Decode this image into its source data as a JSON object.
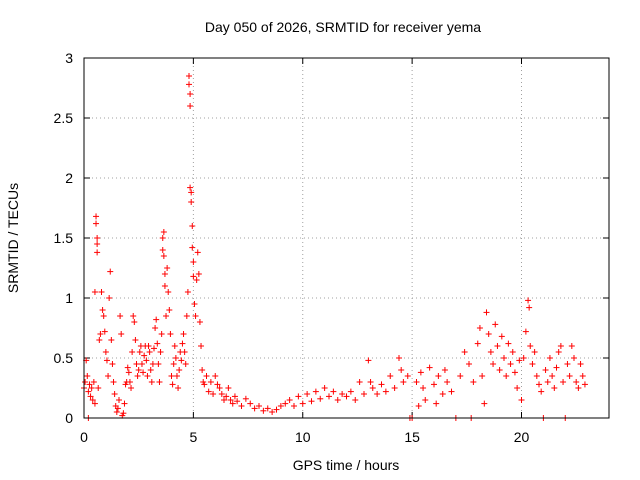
{
  "chart_data": {
    "type": "scatter",
    "title": "Day 050 of 2026, SRMTID for receiver yema",
    "xlabel": "GPS time / hours",
    "ylabel": "SRMTID / TECUs",
    "xlim": [
      0,
      24
    ],
    "ylim": [
      0,
      3
    ],
    "x_ticks": [
      0,
      5,
      10,
      15,
      20
    ],
    "x_tick_labels": [
      "0",
      "5",
      "10",
      "15",
      "20"
    ],
    "y_ticks": [
      0,
      0.5,
      1,
      1.5,
      2,
      2.5,
      3
    ],
    "y_tick_labels": [
      "0",
      "0.5",
      "1",
      "1.5",
      "2",
      "2.5",
      "3"
    ],
    "grid": true,
    "marker": "plus",
    "series": [
      {
        "name": "SRMTID",
        "color": "#ff0000",
        "points": [
          [
            0.0,
            0.25
          ],
          [
            0.05,
            0.3
          ],
          [
            0.1,
            0.48
          ],
          [
            0.15,
            0.35
          ],
          [
            0.2,
            0.22
          ],
          [
            0.25,
            0.28
          ],
          [
            0.3,
            0.18
          ],
          [
            0.35,
            0.25
          ],
          [
            0.4,
            0.15
          ],
          [
            0.45,
            0.3
          ],
          [
            0.5,
            0.12
          ],
          [
            0.5,
            1.05
          ],
          [
            0.55,
            1.68
          ],
          [
            0.55,
            1.62
          ],
          [
            0.6,
            1.5
          ],
          [
            0.6,
            1.45
          ],
          [
            0.6,
            1.38
          ],
          [
            0.65,
            0.25
          ],
          [
            0.7,
            0.65
          ],
          [
            0.75,
            0.7
          ],
          [
            0.8,
            1.05
          ],
          [
            0.85,
            0.9
          ],
          [
            0.9,
            0.85
          ],
          [
            0.95,
            0.72
          ],
          [
            1.0,
            0.55
          ],
          [
            1.05,
            0.48
          ],
          [
            1.1,
            0.35
          ],
          [
            1.15,
            1.0
          ],
          [
            1.2,
            1.22
          ],
          [
            1.25,
            0.65
          ],
          [
            1.3,
            0.45
          ],
          [
            1.35,
            0.3
          ],
          [
            1.4,
            0.2
          ],
          [
            1.45,
            0.1
          ],
          [
            1.5,
            0.05
          ],
          [
            1.55,
            0.08
          ],
          [
            1.6,
            0.15
          ],
          [
            1.65,
            0.85
          ],
          [
            1.7,
            0.7
          ],
          [
            1.75,
            0.02
          ],
          [
            1.8,
            0.04
          ],
          [
            1.85,
            0.12
          ],
          [
            1.9,
            0.28
          ],
          [
            1.95,
            0.3
          ],
          [
            2.0,
            0.42
          ],
          [
            2.05,
            0.38
          ],
          [
            2.1,
            0.3
          ],
          [
            2.15,
            0.25
          ],
          [
            2.2,
            0.55
          ],
          [
            2.25,
            0.85
          ],
          [
            2.3,
            0.8
          ],
          [
            2.35,
            0.65
          ],
          [
            2.4,
            0.45
          ],
          [
            2.45,
            0.35
          ],
          [
            2.5,
            0.4
          ],
          [
            2.55,
            0.55
          ],
          [
            2.6,
            0.6
          ],
          [
            2.65,
            0.45
          ],
          [
            2.7,
            0.38
          ],
          [
            2.75,
            0.52
          ],
          [
            2.8,
            0.6
          ],
          [
            2.85,
            0.48
          ],
          [
            2.9,
            0.35
          ],
          [
            2.95,
            0.6
          ],
          [
            3.0,
            0.55
          ],
          [
            3.05,
            0.4
          ],
          [
            3.1,
            0.3
          ],
          [
            3.15,
            0.45
          ],
          [
            3.2,
            0.58
          ],
          [
            3.25,
            0.75
          ],
          [
            3.3,
            0.82
          ],
          [
            3.35,
            0.62
          ],
          [
            3.4,
            0.45
          ],
          [
            3.45,
            0.3
          ],
          [
            3.5,
            0.55
          ],
          [
            3.55,
            0.7
          ],
          [
            3.6,
            1.4
          ],
          [
            3.6,
            1.5
          ],
          [
            3.65,
            1.55
          ],
          [
            3.65,
            1.35
          ],
          [
            3.7,
            1.1
          ],
          [
            3.7,
            1.2
          ],
          [
            3.75,
            0.85
          ],
          [
            3.8,
            1.25
          ],
          [
            3.85,
            1.05
          ],
          [
            3.9,
            0.9
          ],
          [
            3.95,
            0.7
          ],
          [
            4.0,
            0.35
          ],
          [
            4.05,
            0.28
          ],
          [
            4.1,
            0.45
          ],
          [
            4.15,
            0.6
          ],
          [
            4.2,
            0.5
          ],
          [
            4.25,
            0.35
          ],
          [
            4.3,
            0.25
          ],
          [
            4.35,
            0.4
          ],
          [
            4.4,
            0.55
          ],
          [
            4.45,
            0.48
          ],
          [
            4.5,
            0.62
          ],
          [
            4.55,
            0.7
          ],
          [
            4.6,
            0.55
          ],
          [
            4.65,
            0.45
          ],
          [
            4.7,
            0.85
          ],
          [
            4.75,
            1.05
          ],
          [
            4.8,
            2.85
          ],
          [
            4.8,
            2.78
          ],
          [
            4.85,
            2.7
          ],
          [
            4.85,
            2.6
          ],
          [
            4.85,
            1.92
          ],
          [
            4.9,
            1.88
          ],
          [
            4.9,
            1.8
          ],
          [
            4.95,
            1.6
          ],
          [
            4.95,
            1.42
          ],
          [
            5.0,
            1.3
          ],
          [
            5.0,
            1.18
          ],
          [
            5.05,
            0.95
          ],
          [
            5.1,
            0.85
          ],
          [
            5.15,
            1.15
          ],
          [
            5.2,
            1.38
          ],
          [
            5.25,
            1.2
          ],
          [
            5.3,
            0.8
          ],
          [
            5.35,
            0.6
          ],
          [
            5.4,
            0.4
          ],
          [
            5.45,
            0.3
          ],
          [
            5.5,
            0.28
          ],
          [
            5.6,
            0.35
          ],
          [
            5.7,
            0.22
          ],
          [
            5.8,
            0.3
          ],
          [
            5.9,
            0.2
          ],
          [
            6.0,
            0.35
          ],
          [
            6.1,
            0.28
          ],
          [
            6.2,
            0.25
          ],
          [
            6.3,
            0.2
          ],
          [
            6.4,
            0.15
          ],
          [
            6.5,
            0.18
          ],
          [
            6.6,
            0.25
          ],
          [
            6.7,
            0.15
          ],
          [
            6.8,
            0.12
          ],
          [
            6.9,
            0.18
          ],
          [
            7.0,
            0.14
          ],
          [
            7.2,
            0.1
          ],
          [
            7.4,
            0.16
          ],
          [
            7.6,
            0.12
          ],
          [
            7.8,
            0.08
          ],
          [
            8.0,
            0.1
          ],
          [
            8.2,
            0.06
          ],
          [
            8.4,
            0.08
          ],
          [
            8.6,
            0.05
          ],
          [
            8.8,
            0.07
          ],
          [
            9.0,
            0.1
          ],
          [
            9.2,
            0.12
          ],
          [
            9.4,
            0.15
          ],
          [
            9.6,
            0.1
          ],
          [
            9.8,
            0.18
          ],
          [
            10.0,
            0.12
          ],
          [
            10.2,
            0.2
          ],
          [
            10.4,
            0.14
          ],
          [
            10.6,
            0.22
          ],
          [
            10.8,
            0.16
          ],
          [
            11.0,
            0.25
          ],
          [
            11.2,
            0.18
          ],
          [
            11.4,
            0.22
          ],
          [
            11.6,
            0.15
          ],
          [
            11.8,
            0.2
          ],
          [
            12.0,
            0.18
          ],
          [
            12.2,
            0.22
          ],
          [
            12.4,
            0.15
          ],
          [
            12.6,
            0.3
          ],
          [
            12.8,
            0.2
          ],
          [
            13.0,
            0.48
          ],
          [
            13.1,
            0.3
          ],
          [
            13.2,
            0.25
          ],
          [
            13.4,
            0.2
          ],
          [
            13.6,
            0.28
          ],
          [
            13.8,
            0.22
          ],
          [
            14.0,
            0.35
          ],
          [
            14.2,
            0.25
          ],
          [
            14.4,
            0.5
          ],
          [
            14.5,
            0.4
          ],
          [
            14.6,
            0.3
          ],
          [
            14.8,
            0.35
          ],
          [
            14.9,
            0.0
          ],
          [
            15.0,
            0.0
          ],
          [
            15.2,
            0.3
          ],
          [
            15.3,
            0.1
          ],
          [
            15.4,
            0.38
          ],
          [
            15.5,
            0.25
          ],
          [
            15.6,
            0.15
          ],
          [
            15.8,
            0.42
          ],
          [
            16.0,
            0.28
          ],
          [
            16.1,
            0.12
          ],
          [
            16.2,
            0.35
          ],
          [
            16.4,
            0.2
          ],
          [
            16.5,
            0.4
          ],
          [
            16.6,
            0.3
          ],
          [
            16.8,
            0.22
          ],
          [
            17.0,
            0.0
          ],
          [
            17.2,
            0.35
          ],
          [
            17.4,
            0.55
          ],
          [
            17.6,
            0.45
          ],
          [
            17.7,
            0.0
          ],
          [
            17.8,
            0.3
          ],
          [
            18.0,
            0.62
          ],
          [
            18.1,
            0.75
          ],
          [
            18.2,
            0.35
          ],
          [
            18.3,
            0.12
          ],
          [
            18.4,
            0.88
          ],
          [
            18.5,
            0.7
          ],
          [
            18.6,
            0.55
          ],
          [
            18.7,
            0.45
          ],
          [
            18.8,
            0.78
          ],
          [
            18.9,
            0.6
          ],
          [
            19.0,
            0.4
          ],
          [
            19.1,
            0.68
          ],
          [
            19.2,
            0.5
          ],
          [
            19.3,
            0.35
          ],
          [
            19.4,
            0.62
          ],
          [
            19.5,
            0.45
          ],
          [
            19.6,
            0.55
          ],
          [
            19.7,
            0.38
          ],
          [
            19.8,
            0.25
          ],
          [
            19.9,
            0.48
          ],
          [
            20.0,
            0.15
          ],
          [
            20.1,
            0.5
          ],
          [
            20.2,
            0.72
          ],
          [
            20.3,
            0.98
          ],
          [
            20.35,
            0.92
          ],
          [
            20.4,
            0.6
          ],
          [
            20.5,
            0.45
          ],
          [
            20.6,
            0.55
          ],
          [
            20.7,
            0.35
          ],
          [
            20.8,
            0.28
          ],
          [
            20.9,
            0.22
          ],
          [
            21.0,
            0.0
          ],
          [
            21.1,
            0.4
          ],
          [
            21.2,
            0.3
          ],
          [
            21.3,
            0.5
          ],
          [
            21.4,
            0.35
          ],
          [
            21.5,
            0.25
          ],
          [
            21.6,
            0.42
          ],
          [
            21.7,
            0.55
          ],
          [
            21.8,
            0.6
          ],
          [
            21.9,
            0.3
          ],
          [
            22.0,
            0.0
          ],
          [
            22.1,
            0.45
          ],
          [
            22.2,
            0.35
          ],
          [
            22.3,
            0.6
          ],
          [
            22.4,
            0.5
          ],
          [
            22.5,
            0.3
          ],
          [
            22.6,
            0.25
          ],
          [
            22.7,
            0.45
          ],
          [
            22.8,
            0.35
          ],
          [
            22.9,
            0.28
          ],
          [
            0.2,
            0.0
          ]
        ]
      }
    ]
  }
}
